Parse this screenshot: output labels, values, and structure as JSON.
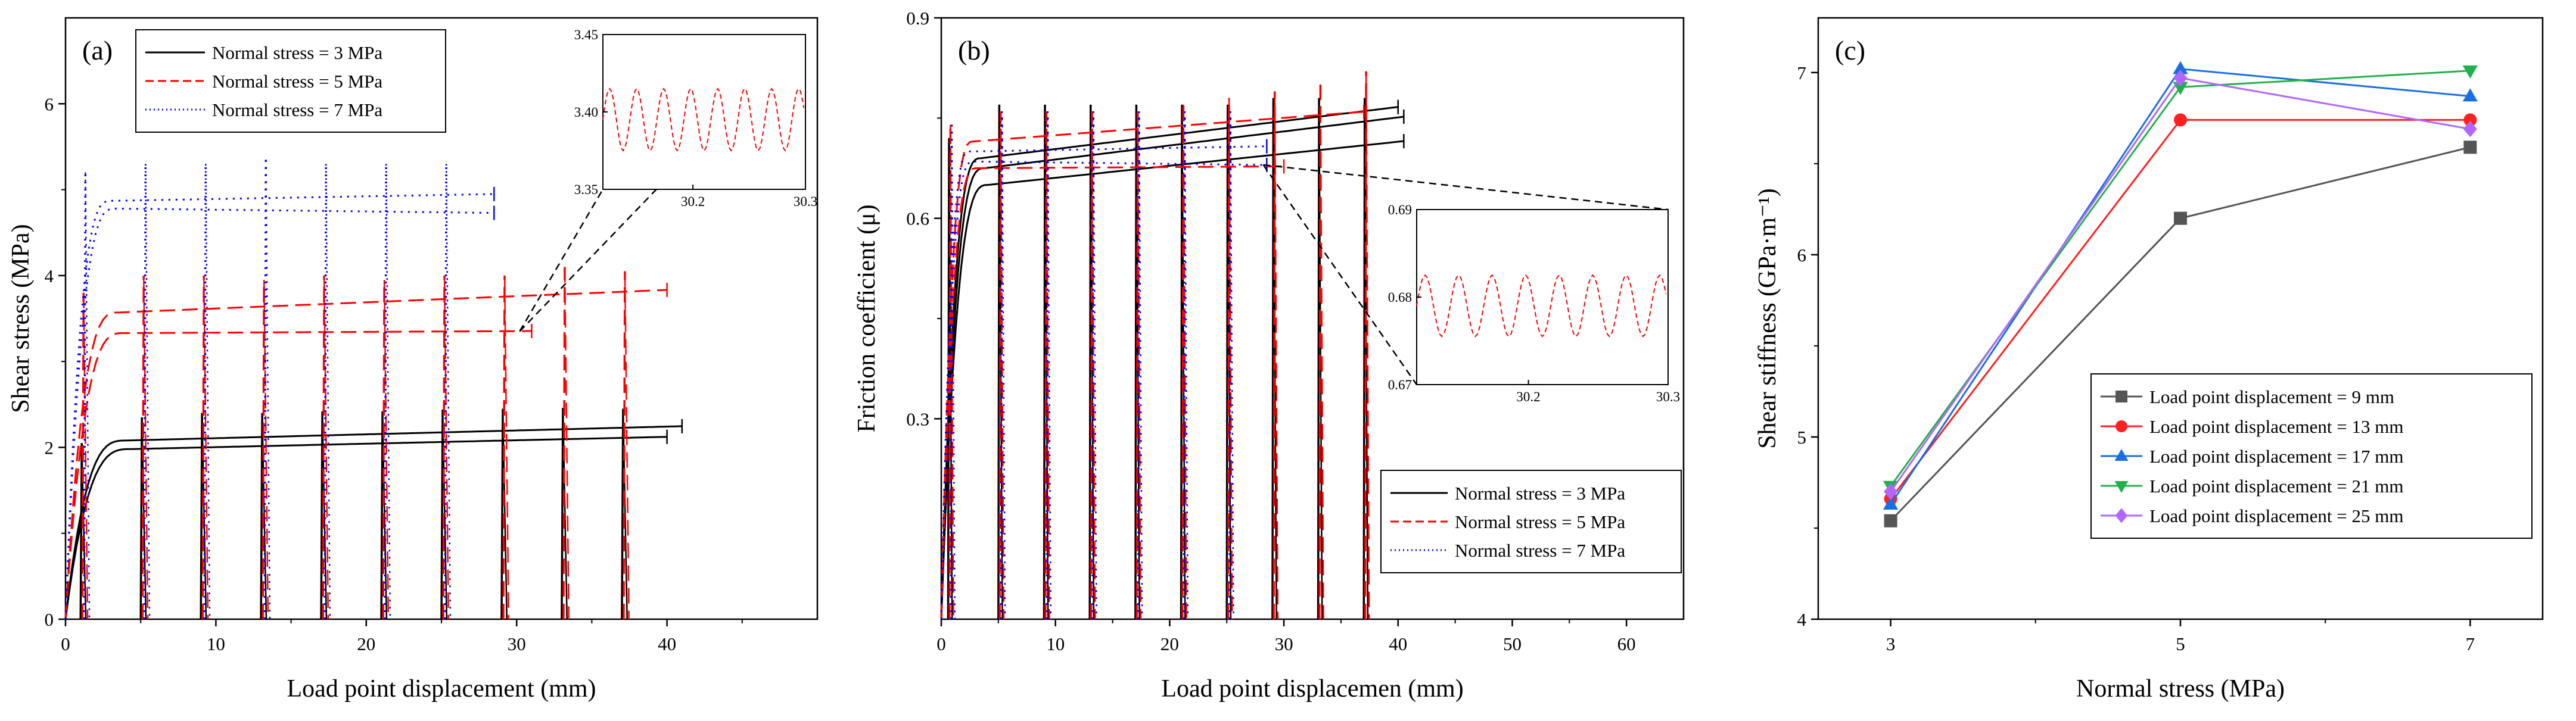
{
  "chart_data": [
    {
      "panel_label": "(a)",
      "type": "line",
      "xlabel": "Load point displacement (mm)",
      "ylabel": "Shear stress (MPa)",
      "xlim": [
        0,
        50
      ],
      "ylim": [
        0,
        7
      ],
      "xticks": [
        "0",
        "10",
        "20",
        "30",
        "40"
      ],
      "yticks": [
        "0",
        "2",
        "4",
        "6"
      ],
      "legend_position": "top-left",
      "series": [
        {
          "name": "Normal stress = 3 MPa",
          "color": "#000000",
          "dash": "solid",
          "curves": [
            {
              "end": 41.0,
              "plateau": 2.08,
              "slope": 0.0045
            },
            {
              "end": 40.0,
              "plateau": 1.98,
              "slope": 0.004
            }
          ]
        },
        {
          "name": "Normal stress = 5 MPa",
          "color": "#ff0000",
          "dash": "dashed",
          "curves": [
            {
              "end": 40.0,
              "plateau": 3.57,
              "slope": 0.0072
            },
            {
              "end": 31.0,
              "plateau": 3.33,
              "slope": 0.0009
            }
          ]
        },
        {
          "name": "Normal stress = 7 MPa",
          "color": "#0000ff",
          "dash": "dotted",
          "curves": [
            {
              "end": 28.6,
              "plateau": 4.87,
              "slope": 0.0031
            },
            {
              "end": 28.6,
              "plateau": 4.78,
              "slope": -0.002
            }
          ]
        }
      ],
      "spikes": {
        "positions": [
          1,
          5,
          9,
          13,
          17,
          21,
          25,
          29,
          33,
          37
        ],
        "peaks": {
          "Normal stress = 3 MPa": [
            2.05,
            2.35,
            2.4,
            2.4,
            2.42,
            2.42,
            2.44,
            2.45,
            2.46,
            2.45
          ],
          "Normal stress = 5 MPa": [
            3.8,
            4.0,
            4.0,
            3.95,
            4.0,
            3.95,
            4.0,
            4.0,
            4.1,
            4.05
          ],
          "Normal stress = 7 MPa": [
            5.2,
            5.3,
            5.3,
            5.35,
            5.3,
            5.3,
            5.3
          ]
        }
      },
      "inset": {
        "xlim": [
          30.12,
          30.3
        ],
        "ylim": [
          3.35,
          3.45
        ],
        "xticks": [
          "30.2",
          "30.3"
        ],
        "yticks": [
          "3.35",
          "3.40",
          "3.45"
        ],
        "series": "Normal stress = 5 MPa",
        "mean": 3.395,
        "amplitude": 0.02,
        "period": 0.024
      }
    },
    {
      "panel_label": "(b)",
      "type": "line",
      "xlabel": "Load point displacemen (mm)",
      "ylabel": "Friction coefficient (μ)",
      "xlim": [
        0,
        65
      ],
      "ylim": [
        0,
        0.9
      ],
      "xticks": [
        "0",
        "10",
        "20",
        "30",
        "40",
        "50",
        "60"
      ],
      "yticks": [
        "0.3",
        "0.6",
        "0.9"
      ],
      "legend_position": "bottom-right",
      "series": [
        {
          "name": "Normal stress = 3 MPa",
          "color": "#000000",
          "dash": "solid",
          "curves": [
            {
              "end": 40.0,
              "plateau": 0.69,
              "slope": 0.0021
            },
            {
              "end": 40.5,
              "plateau": 0.675,
              "slope": 0.0021
            },
            {
              "end": 40.5,
              "plateau": 0.65,
              "slope": 0.0018
            }
          ]
        },
        {
          "name": "Normal stress = 5 MPa",
          "color": "#ff0000",
          "dash": "dashed",
          "curves": [
            {
              "end": 37.0,
              "plateau": 0.715,
              "slope": 0.0013
            },
            {
              "end": 30.0,
              "plateau": 0.675,
              "slope": 0.0001
            }
          ]
        },
        {
          "name": "Normal stress = 7 MPa",
          "color": "#0000ff",
          "dash": "dotted",
          "curves": [
            {
              "end": 28.5,
              "plateau": 0.7,
              "slope": 0.0003
            },
            {
              "end": 28.5,
              "plateau": 0.685,
              "slope": -0.0002
            }
          ]
        }
      ],
      "spikes": {
        "positions": [
          0.6,
          5,
          9,
          13,
          17,
          21,
          25,
          29,
          33,
          37
        ],
        "peaks": {
          "Normal stress = 3 MPa": [
            0.72,
            0.77,
            0.77,
            0.77,
            0.77,
            0.77,
            0.77,
            0.78,
            0.78,
            0.78
          ],
          "Normal stress = 5 MPa": [
            0.74,
            0.76,
            0.76,
            0.76,
            0.76,
            0.77,
            0.78,
            0.79,
            0.8,
            0.82
          ],
          "Normal stress = 7 MPa": [
            0.74,
            0.76,
            0.76,
            0.76,
            0.76,
            0.76,
            0.76
          ]
        }
      },
      "inset": {
        "xlim": [
          30.12,
          30.3
        ],
        "ylim": [
          0.67,
          0.69
        ],
        "xticks": [
          "30.2",
          "30.3"
        ],
        "yticks": [
          "0.67",
          "0.68",
          "0.69"
        ],
        "series": "Normal stress = 5 MPa",
        "mean": 0.679,
        "amplitude": 0.0035,
        "period": 0.024
      }
    },
    {
      "panel_label": "(c)",
      "type": "line",
      "xlabel": "Normal stress (MPa)",
      "ylabel": "Shear stiffness (GPa·m⁻¹)",
      "xlim": [
        2.5,
        7.5
      ],
      "ylim": [
        4,
        7.3
      ],
      "xticks": [
        "3",
        "5",
        "7"
      ],
      "yticks": [
        "4",
        "5",
        "6",
        "7"
      ],
      "legend_position": "bottom-right",
      "x": [
        3,
        5,
        7
      ],
      "series": [
        {
          "name": "Load point displacement = 9 mm",
          "color": "#555555",
          "marker": "square",
          "values": [
            4.54,
            6.2,
            6.59
          ]
        },
        {
          "name": "Load point displacement = 13 mm",
          "color": "#ff2020",
          "marker": "circle",
          "values": [
            4.66,
            6.74,
            6.74
          ]
        },
        {
          "name": "Load point displacement = 17 mm",
          "color": "#1a6fe0",
          "marker": "triangle-up",
          "values": [
            4.63,
            7.02,
            6.87
          ]
        },
        {
          "name": "Load point displacement = 21 mm",
          "color": "#22b04a",
          "marker": "triangle-down",
          "values": [
            4.73,
            6.92,
            7.01
          ]
        },
        {
          "name": "Load point displacement = 25 mm",
          "color": "#b266ff",
          "marker": "diamond",
          "values": [
            4.7,
            6.97,
            6.69
          ]
        }
      ]
    }
  ]
}
